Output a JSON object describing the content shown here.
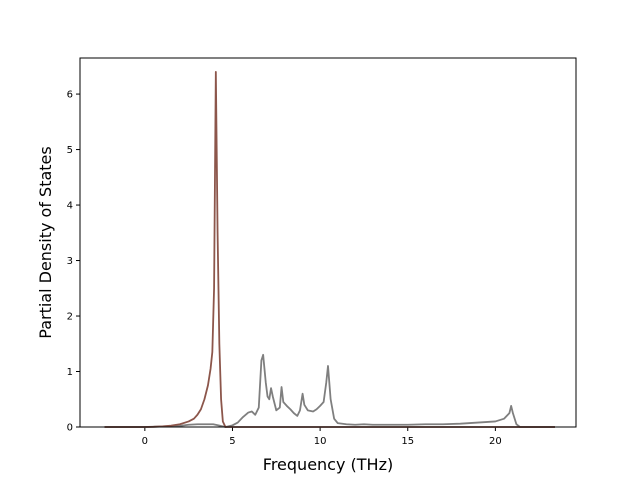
{
  "chart_data": {
    "type": "line",
    "title": "",
    "xlabel": "Frequency (THz)",
    "ylabel": "Partial Density of States",
    "xlim": [
      -3.7,
      24.6
    ],
    "ylim": [
      0,
      6.65
    ],
    "xticks": [
      0,
      5,
      10,
      15,
      20
    ],
    "yticks": [
      0,
      1,
      2,
      3,
      4,
      5,
      6
    ],
    "grid": false,
    "legend": "none",
    "series": [
      {
        "color": "#7f7f7f",
        "points": [
          [
            -2.3,
            0
          ],
          [
            0.0,
            0.0
          ],
          [
            1.0,
            0.01
          ],
          [
            2.0,
            0.02
          ],
          [
            2.5,
            0.04
          ],
          [
            3.0,
            0.05
          ],
          [
            3.5,
            0.05
          ],
          [
            3.9,
            0.05
          ],
          [
            4.2,
            0.03
          ],
          [
            4.6,
            0.0
          ],
          [
            5.0,
            0.03
          ],
          [
            5.3,
            0.08
          ],
          [
            5.6,
            0.18
          ],
          [
            5.9,
            0.26
          ],
          [
            6.1,
            0.28
          ],
          [
            6.3,
            0.22
          ],
          [
            6.5,
            0.35
          ],
          [
            6.65,
            1.2
          ],
          [
            6.75,
            1.3
          ],
          [
            6.9,
            0.8
          ],
          [
            7.0,
            0.55
          ],
          [
            7.1,
            0.5
          ],
          [
            7.2,
            0.7
          ],
          [
            7.3,
            0.55
          ],
          [
            7.5,
            0.3
          ],
          [
            7.7,
            0.35
          ],
          [
            7.8,
            0.72
          ],
          [
            7.9,
            0.45
          ],
          [
            8.1,
            0.38
          ],
          [
            8.3,
            0.32
          ],
          [
            8.5,
            0.25
          ],
          [
            8.7,
            0.2
          ],
          [
            8.85,
            0.3
          ],
          [
            9.0,
            0.6
          ],
          [
            9.1,
            0.4
          ],
          [
            9.3,
            0.3
          ],
          [
            9.6,
            0.28
          ],
          [
            9.8,
            0.32
          ],
          [
            10.0,
            0.38
          ],
          [
            10.2,
            0.45
          ],
          [
            10.35,
            0.8
          ],
          [
            10.45,
            1.1
          ],
          [
            10.6,
            0.5
          ],
          [
            10.8,
            0.15
          ],
          [
            11.0,
            0.07
          ],
          [
            11.5,
            0.05
          ],
          [
            12.0,
            0.04
          ],
          [
            12.5,
            0.05
          ],
          [
            13.0,
            0.04
          ],
          [
            14.0,
            0.04
          ],
          [
            15.0,
            0.04
          ],
          [
            16.0,
            0.05
          ],
          [
            17.0,
            0.05
          ],
          [
            18.0,
            0.06
          ],
          [
            19.0,
            0.08
          ],
          [
            20.0,
            0.1
          ],
          [
            20.5,
            0.15
          ],
          [
            20.8,
            0.25
          ],
          [
            20.9,
            0.38
          ],
          [
            21.0,
            0.25
          ],
          [
            21.2,
            0.05
          ],
          [
            21.4,
            0.0
          ],
          [
            23.4,
            0.0
          ]
        ]
      },
      {
        "color": "#8c564b",
        "points": [
          [
            -2.3,
            0
          ],
          [
            0.0,
            0.0
          ],
          [
            0.5,
            0.003
          ],
          [
            1.0,
            0.01
          ],
          [
            1.5,
            0.025
          ],
          [
            2.0,
            0.05
          ],
          [
            2.5,
            0.1
          ],
          [
            2.8,
            0.15
          ],
          [
            3.0,
            0.22
          ],
          [
            3.2,
            0.32
          ],
          [
            3.4,
            0.5
          ],
          [
            3.6,
            0.75
          ],
          [
            3.75,
            1.05
          ],
          [
            3.85,
            1.35
          ],
          [
            3.95,
            2.5
          ],
          [
            4.05,
            6.4
          ],
          [
            4.15,
            3.5
          ],
          [
            4.25,
            1.5
          ],
          [
            4.35,
            0.5
          ],
          [
            4.45,
            0.1
          ],
          [
            4.6,
            0.0
          ],
          [
            23.4,
            0.0
          ]
        ]
      }
    ]
  }
}
